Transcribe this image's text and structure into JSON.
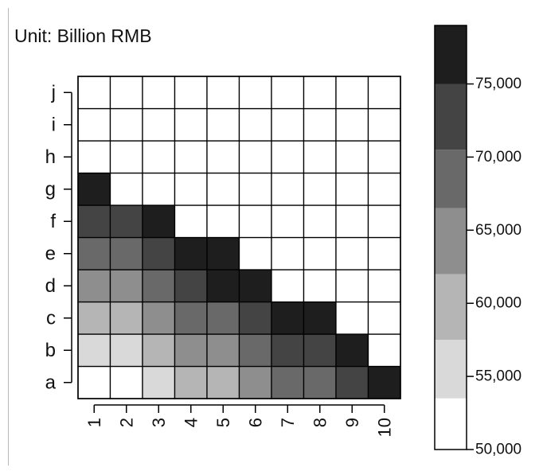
{
  "unit_label": "Unit: Billion RMB",
  "chart_data": {
    "type": "heatmap",
    "title": "",
    "xlabel": "",
    "ylabel": "",
    "x": [
      "1",
      "2",
      "3",
      "4",
      "5",
      "6",
      "7",
      "8",
      "9",
      "10"
    ],
    "y": [
      "a",
      "b",
      "c",
      "d",
      "e",
      "f",
      "g",
      "h",
      "i",
      "j"
    ],
    "value_bins": [
      {
        "min": 50000,
        "max": 53500,
        "color": "#ffffff"
      },
      {
        "min": 53500,
        "max": 57500,
        "color": "#d9d9d9"
      },
      {
        "min": 57500,
        "max": 62000,
        "color": "#b5b5b5"
      },
      {
        "min": 62000,
        "max": 66500,
        "color": "#8e8e8e"
      },
      {
        "min": 66500,
        "max": 70500,
        "color": "#696969"
      },
      {
        "min": 70500,
        "max": 75000,
        "color": "#444444"
      },
      {
        "min": 75000,
        "max": 79000,
        "color": "#1e1e1e"
      }
    ],
    "cells": [
      [
        0,
        0,
        1,
        2,
        2,
        3,
        4,
        4,
        5,
        6
      ],
      [
        1,
        1,
        2,
        3,
        3,
        4,
        5,
        5,
        6,
        null
      ],
      [
        2,
        2,
        3,
        4,
        4,
        5,
        6,
        6,
        null,
        null
      ],
      [
        3,
        3,
        4,
        5,
        6,
        6,
        null,
        null,
        null,
        null
      ],
      [
        4,
        4,
        5,
        6,
        6,
        null,
        null,
        null,
        null,
        null
      ],
      [
        5,
        5,
        6,
        null,
        null,
        null,
        null,
        null,
        null,
        null
      ],
      [
        6,
        null,
        null,
        null,
        null,
        null,
        null,
        null,
        null,
        null
      ],
      [
        null,
        null,
        null,
        null,
        null,
        null,
        null,
        null,
        null,
        null
      ],
      [
        null,
        null,
        null,
        null,
        null,
        null,
        null,
        null,
        null,
        null
      ],
      [
        null,
        null,
        null,
        null,
        null,
        null,
        null,
        null,
        null,
        null
      ]
    ],
    "empty_color": "#ffffff",
    "colorbar": {
      "range": [
        50000,
        79000
      ],
      "ticks": [
        50000,
        55000,
        60000,
        65000,
        70000,
        75000
      ],
      "tick_labels": [
        "50,000",
        "55,000",
        "60,000",
        "65,000",
        "70,000",
        "75,000"
      ]
    }
  }
}
